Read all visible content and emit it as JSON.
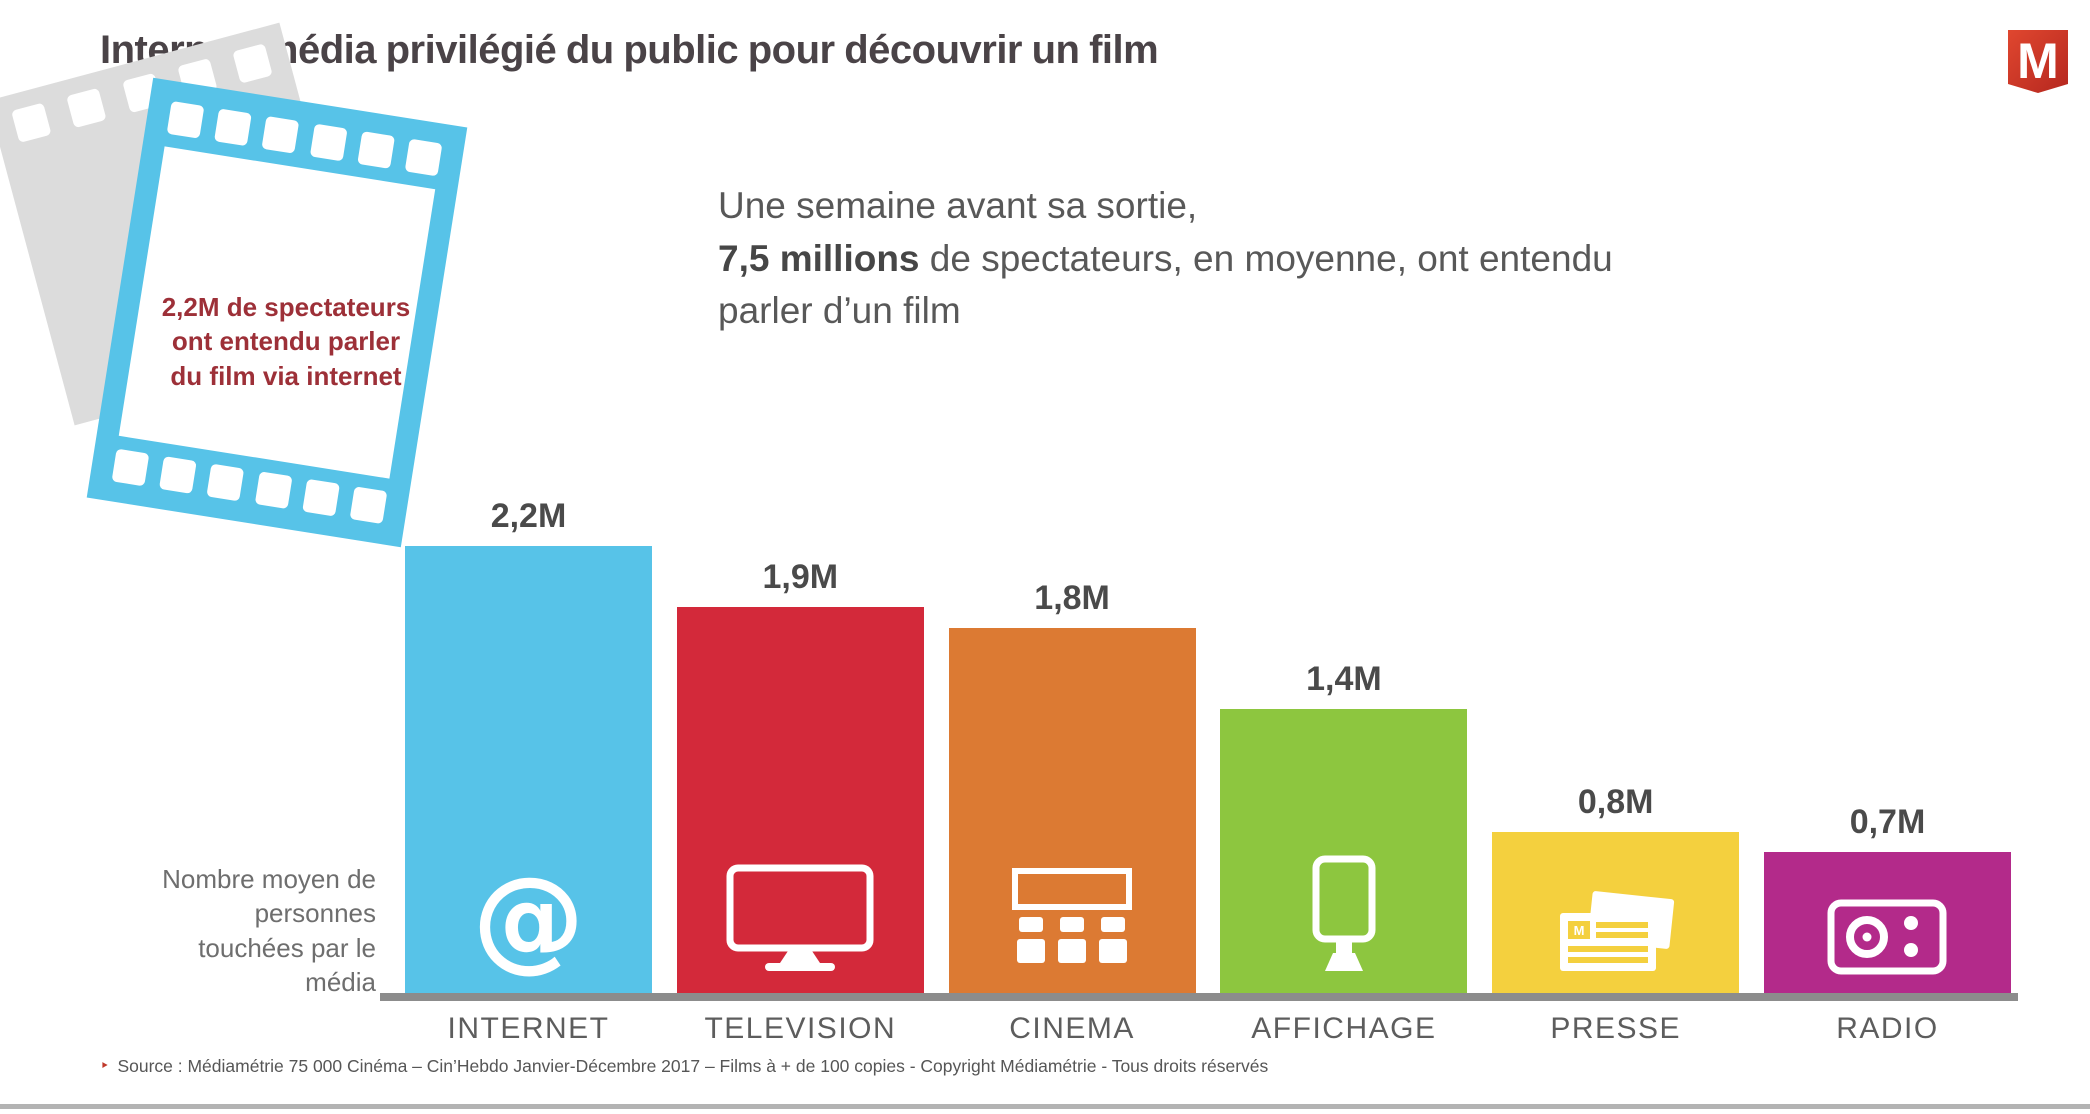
{
  "title": "Internet, média privilégié du public pour découvrir un film",
  "logo": {
    "letter": "M",
    "color": "#cf362c"
  },
  "filmstrip": {
    "caption": "2,2M de spectateurs\nont entendu parler\ndu film via internet",
    "strip_color": "#57c3e8",
    "back_strip_color": "#dcdcdc",
    "caption_color": "#9d3038"
  },
  "headline": {
    "line1": "Une semaine avant sa sortie,",
    "line2_bold": "7,5 millions",
    "line2_rest": " de spectateurs, en moyenne, ont entendu",
    "line3": "parler d’un film"
  },
  "chart_data": {
    "type": "bar",
    "title": "",
    "unit": "millions de personnes (M)",
    "ylabel": "Nombre moyen de\npersonnes\ntouchées par le\nmédia",
    "ylim": [
      0,
      2.4
    ],
    "grid": false,
    "legend": false,
    "categories": [
      "INTERNET",
      "TELEVISION",
      "CINEMA",
      "AFFICHAGE",
      "PRESSE",
      "RADIO"
    ],
    "bars": [
      {
        "category": "INTERNET",
        "value": 2.2,
        "value_label": "2,2M",
        "color": "#57c3e8",
        "icon": "at-sign"
      },
      {
        "category": "TELEVISION",
        "value": 1.9,
        "value_label": "1,9M",
        "color": "#d3293a",
        "icon": "television"
      },
      {
        "category": "CINEMA",
        "value": 1.8,
        "value_label": "1,8M",
        "color": "#dc7a33",
        "icon": "cinema-seats"
      },
      {
        "category": "AFFICHAGE",
        "value": 1.4,
        "value_label": "1,4M",
        "color": "#8dc63f",
        "icon": "billboard"
      },
      {
        "category": "PRESSE",
        "value": 0.8,
        "value_label": "0,8M",
        "color": "#f4d03e",
        "icon": "newspaper"
      },
      {
        "category": "RADIO",
        "value": 0.7,
        "value_label": "0,7M",
        "color": "#b32a8a",
        "icon": "radio"
      }
    ]
  },
  "icons": {
    "at_glyph": "@",
    "newspaper_monogram": "M"
  },
  "source": {
    "bullet": "‣",
    "text": "Source : Médiamétrie 75 000 Cinéma – Cin’Hebdo Janvier-Décembre 2017 – Films à + de 100 copies - Copyright Médiamétrie - Tous droits réservés"
  }
}
